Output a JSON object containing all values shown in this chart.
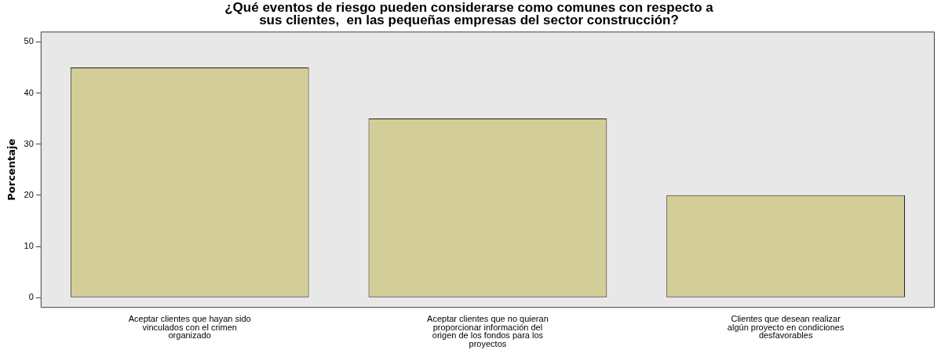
{
  "chart_data": {
    "type": "bar",
    "title": "¿Qué eventos de riesgo pueden considerarse como comunes con respecto a\nsus clientes,  en las pequeñas empresas del sector construcción?",
    "ylabel": "Porcentaje",
    "categories": [
      "Aceptar clientes que hayan sido vinculados con el crimen organizado",
      "Aceptar clientes que no quieran proporcionar información del origen de los fondos para los proyectos",
      "Clientes que desean realizar algún proyecto en condiciones desfavorables"
    ],
    "values": [
      45,
      35,
      20
    ],
    "color": "#d3ce97",
    "ylim": [
      -2,
      52
    ],
    "yticks": [
      0,
      10,
      20,
      30,
      40,
      50
    ],
    "legend": false
  }
}
